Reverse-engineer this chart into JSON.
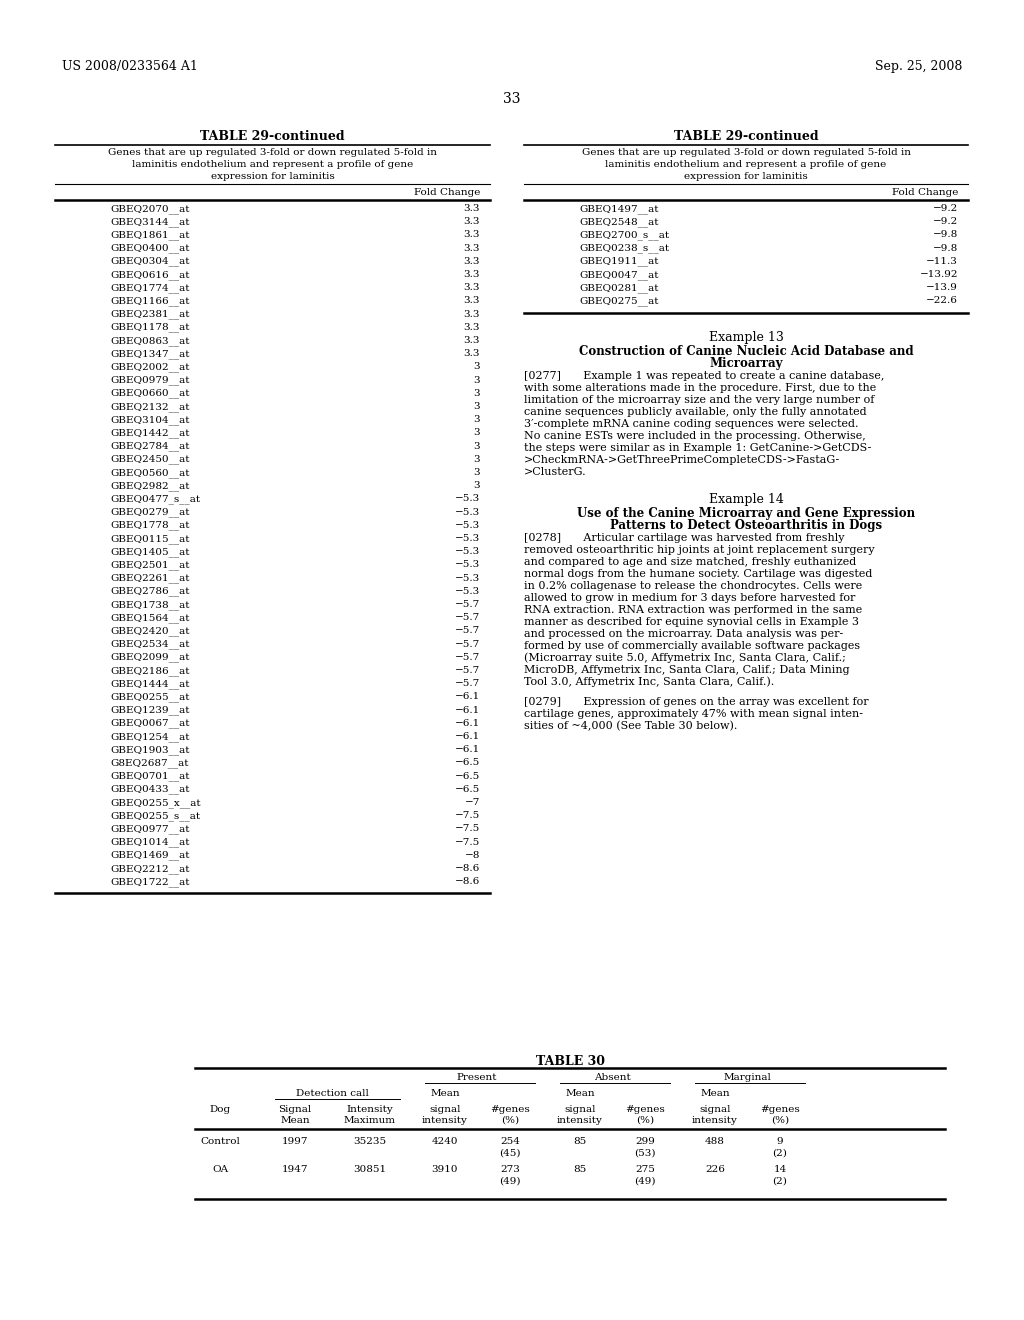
{
  "header_left": "US 2008/0233564 A1",
  "header_right": "Sep. 25, 2008",
  "page_number": "33",
  "bg_color": "#ffffff",
  "text_color": "#000000",
  "left_table_title": "TABLE 29-continued",
  "left_table_subtitle1": "Genes that are up regulated 3-fold or down regulated 5-fold in",
  "left_table_subtitle2": "laminitis endothelium and represent a profile of gene",
  "left_table_subtitle3": "expression for laminitis",
  "left_col_header": "Fold Change",
  "left_table_data": [
    [
      "GBEQ2070__at",
      "3.3"
    ],
    [
      "GBEQ3144__at",
      "3.3"
    ],
    [
      "GBEQ1861__at",
      "3.3"
    ],
    [
      "GBEQ0400__at",
      "3.3"
    ],
    [
      "GBEQ0304__at",
      "3.3"
    ],
    [
      "GBEQ0616__at",
      "3.3"
    ],
    [
      "GBEQ1774__at",
      "3.3"
    ],
    [
      "GBEQ1166__at",
      "3.3"
    ],
    [
      "GBEQ2381__at",
      "3.3"
    ],
    [
      "GBEQ1178__at",
      "3.3"
    ],
    [
      "GBEQ0863__at",
      "3.3"
    ],
    [
      "GBEQ1347__at",
      "3.3"
    ],
    [
      "GBEQ2002__at",
      "3"
    ],
    [
      "GBEQ0979__at",
      "3"
    ],
    [
      "GBEQ0660__at",
      "3"
    ],
    [
      "GBEQ2132__at",
      "3"
    ],
    [
      "GBEQ3104__at",
      "3"
    ],
    [
      "GBEQ1442__at",
      "3"
    ],
    [
      "GBEQ2784__at",
      "3"
    ],
    [
      "GBEQ2450__at",
      "3"
    ],
    [
      "GBEQ0560__at",
      "3"
    ],
    [
      "GBEQ2982__at",
      "3"
    ],
    [
      "GBEQ0477_s__at",
      "−5.3"
    ],
    [
      "GBEQ0279__at",
      "−5.3"
    ],
    [
      "GBEQ1778__at",
      "−5.3"
    ],
    [
      "GBEQ0115__at",
      "−5.3"
    ],
    [
      "GBEQ1405__at",
      "−5.3"
    ],
    [
      "GBEQ2501__at",
      "−5.3"
    ],
    [
      "GBEQ2261__at",
      "−5.3"
    ],
    [
      "GBEQ2786__at",
      "−5.3"
    ],
    [
      "GBEQ1738__at",
      "−5.7"
    ],
    [
      "GBEQ1564__at",
      "−5.7"
    ],
    [
      "GBEQ2420__at",
      "−5.7"
    ],
    [
      "GBEQ2534__at",
      "−5.7"
    ],
    [
      "GBEQ2099__at",
      "−5.7"
    ],
    [
      "GBEQ2186__at",
      "−5.7"
    ],
    [
      "GBEQ1444__at",
      "−5.7"
    ],
    [
      "GBEQ0255__at",
      "−6.1"
    ],
    [
      "GBEQ1239__at",
      "−6.1"
    ],
    [
      "GBEQ0067__at",
      "−6.1"
    ],
    [
      "GBEQ1254__at",
      "−6.1"
    ],
    [
      "GBEQ1903__at",
      "−6.1"
    ],
    [
      "G8EQ2687__at",
      "−6.5"
    ],
    [
      "GBEQ0701__at",
      "−6.5"
    ],
    [
      "GBEQ0433__at",
      "−6.5"
    ],
    [
      "GBEQ0255_x__at",
      "−7"
    ],
    [
      "GBEQ0255_s__at",
      "−7.5"
    ],
    [
      "GBEQ0977__at",
      "−7.5"
    ],
    [
      "GBEQ1014__at",
      "−7.5"
    ],
    [
      "GBEQ1469__at",
      "−8"
    ],
    [
      "GBEQ2212__at",
      "−8.6"
    ],
    [
      "GBEQ1722__at",
      "−8.6"
    ]
  ],
  "right_table_title": "TABLE 29-continued",
  "right_table_subtitle1": "Genes that are up regulated 3-fold or down regulated 5-fold in",
  "right_table_subtitle2": "laminitis endothelium and represent a profile of gene",
  "right_table_subtitle3": "expression for laminitis",
  "right_col_header": "Fold Change",
  "right_table_data": [
    [
      "GBEQ1497__at",
      "−9.2"
    ],
    [
      "GBEQ2548__at",
      "−9.2"
    ],
    [
      "GBEQ2700_s__at",
      "−9.8"
    ],
    [
      "GBEQ0238_s__at",
      "−9.8"
    ],
    [
      "GBEQ1911__at",
      "−11.3"
    ],
    [
      "GBEQ0047__at",
      "−13.92"
    ],
    [
      "GBEQ0281__at",
      "−13.9"
    ],
    [
      "GBEQ0275__at",
      "−22.6"
    ]
  ],
  "example13_title": "Example 13",
  "example13_subtitle1": "Construction of Canine Nucleic Acid Database and",
  "example13_subtitle2": "Microarray",
  "example13_body": "[0277]  Example 1 was repeated to create a canine database,\nwith some alterations made in the procedure. First, due to the\nlimitation of the microarray size and the very large number of\ncanine sequences publicly available, only the fully annotated\n3′-complete mRNA canine coding sequences were selected.\nNo canine ESTs were included in the processing. Otherwise,\nthe steps were similar as in Example 1: GetCanine->GetCDS-\n>CheckmRNA->GetThreePrimeCompleteCDS->FastaG-\n>ClusterG.",
  "example14_title": "Example 14",
  "example14_subtitle1": "Use of the Canine Microarray and Gene Expression",
  "example14_subtitle2": "Patterns to Detect Osteoarthritis in Dogs",
  "example14_body": "[0278]  Articular cartilage was harvested from freshly\nremoved osteoarthritic hip joints at joint replacement surgery\nand compared to age and size matched, freshly euthanized\nnormal dogs from the humane society. Cartilage was digested\nin 0.2% collagenase to release the chondrocytes. Cells were\nallowed to grow in medium for 3 days before harvested for\nRNA extraction. RNA extraction was performed in the same\nmanner as described for equine synovial cells in Example 3\nand processed on the microarray. Data analysis was per-\nformed by use of commercially available software packages\n(Microarray suite 5.0, Affymetrix Inc, Santa Clara, Calif.;\nMicroDB, Affymetrix Inc, Santa Clara, Calif.; Data Mining\nTool 3.0, Affymetrix Inc, Santa Clara, Calif.).",
  "example14_body2": "[0279]  Expression of genes on the array was excellent for\ncartilage genes, approximately 47% with mean signal inten-\nsities of ~4,000 (See Table 30 below).",
  "table30_title": "TABLE 30",
  "table30_data": [
    [
      "Control",
      "1997",
      "35235",
      "4240",
      "254",
      "(45)",
      "85",
      "299",
      "(53)",
      "488",
      "9",
      "(2)"
    ],
    [
      "OA",
      "1947",
      "30851",
      "3910",
      "273",
      "(49)",
      "85",
      "275",
      "(49)",
      "226",
      "14",
      "(2)"
    ]
  ]
}
